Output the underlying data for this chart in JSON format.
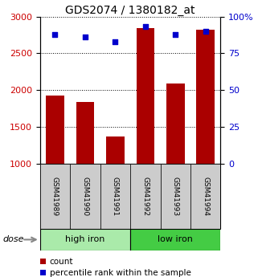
{
  "title": "GDS2074 / 1380182_at",
  "samples": [
    "GSM41989",
    "GSM41990",
    "GSM41991",
    "GSM41992",
    "GSM41993",
    "GSM41994"
  ],
  "counts": [
    1920,
    1840,
    1370,
    2840,
    2090,
    2820
  ],
  "percentiles": [
    88,
    86,
    83,
    93,
    88,
    90
  ],
  "y_min": 1000,
  "y_max": 3000,
  "y_ticks": [
    1000,
    1500,
    2000,
    2500,
    3000
  ],
  "y2_ticks": [
    0,
    25,
    50,
    75,
    100
  ],
  "y2_labels": [
    "0",
    "25",
    "50",
    "75",
    "100%"
  ],
  "groups": [
    {
      "label": "high iron",
      "indices": [
        0,
        1,
        2
      ],
      "color": "#aaeaaa"
    },
    {
      "label": "low iron",
      "indices": [
        3,
        4,
        5
      ],
      "color": "#44cc44"
    }
  ],
  "bar_color": "#aa0000",
  "dot_color": "#0000cc",
  "bar_width": 0.6,
  "label_color_left": "#cc0000",
  "label_color_right": "#0000cc",
  "bg_figure": "#ffffff",
  "tick_label_bg": "#cccccc",
  "dose_label": "dose",
  "legend_count": "count",
  "legend_percentile": "percentile rank within the sample"
}
